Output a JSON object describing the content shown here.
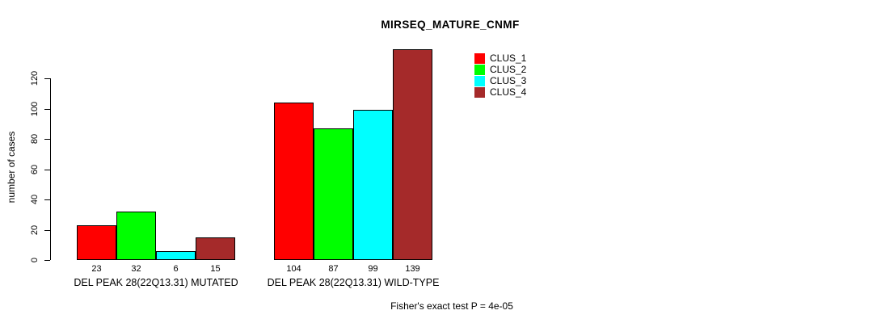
{
  "chart_data": {
    "type": "bar",
    "title": "MIRSEQ_MATURE_CNMF",
    "ylabel": "number of cases",
    "xlabel": "",
    "note": "Fisher's exact test P = 4e-05",
    "ylim": [
      0,
      139
    ],
    "yticks": [
      0,
      20,
      40,
      60,
      80,
      100,
      120
    ],
    "grid": false,
    "legend_position": "top-right",
    "categories": [
      "DEL PEAK 28(22Q13.31) MUTATED",
      "DEL PEAK 28(22Q13.31) WILD-TYPE"
    ],
    "series": [
      {
        "name": "CLUS_1",
        "color": "#FF0000",
        "values": [
          23,
          104
        ]
      },
      {
        "name": "CLUS_2",
        "color": "#00FF00",
        "values": [
          32,
          87
        ]
      },
      {
        "name": "CLUS_3",
        "color": "#00FFFF",
        "values": [
          6,
          99
        ]
      },
      {
        "name": "CLUS_4",
        "color": "#A52A2A",
        "values": [
          15,
          139
        ]
      }
    ]
  }
}
